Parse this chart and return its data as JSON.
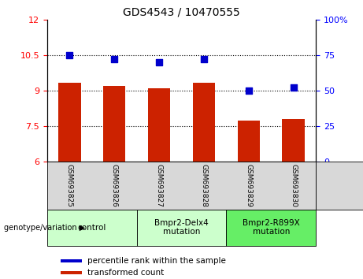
{
  "title": "GDS4543 / 10470555",
  "samples": [
    "GSM693825",
    "GSM693826",
    "GSM693827",
    "GSM693828",
    "GSM693829",
    "GSM693830"
  ],
  "bar_values": [
    9.35,
    9.2,
    9.1,
    9.35,
    7.75,
    7.8
  ],
  "percentile_values": [
    75,
    72,
    70,
    72,
    50,
    52
  ],
  "left_ylim": [
    6,
    12
  ],
  "right_ylim": [
    0,
    100
  ],
  "left_yticks": [
    6,
    7.5,
    9,
    10.5,
    12
  ],
  "right_yticks": [
    0,
    25,
    50,
    75,
    100
  ],
  "bar_color": "#CC2200",
  "dot_color": "#0000CC",
  "hline_values": [
    7.5,
    9.0,
    10.5
  ],
  "groups": [
    {
      "label": "control",
      "start": 0,
      "end": 2,
      "color": "#ccffcc"
    },
    {
      "label": "Bmpr2-Delx4\nmutation",
      "start": 2,
      "end": 4,
      "color": "#ccffcc"
    },
    {
      "label": "Bmpr2-R899X\nmutation",
      "start": 4,
      "end": 6,
      "color": "#66ee66"
    }
  ],
  "sample_bg_color": "#d8d8d8",
  "legend_bar_label": "transformed count",
  "legend_dot_label": "percentile rank within the sample",
  "genotype_label": "genotype/variation",
  "title_fontsize": 10,
  "tick_fontsize": 8,
  "sample_fontsize": 6.5,
  "group_fontsize": 7.5,
  "legend_fontsize": 7.5
}
